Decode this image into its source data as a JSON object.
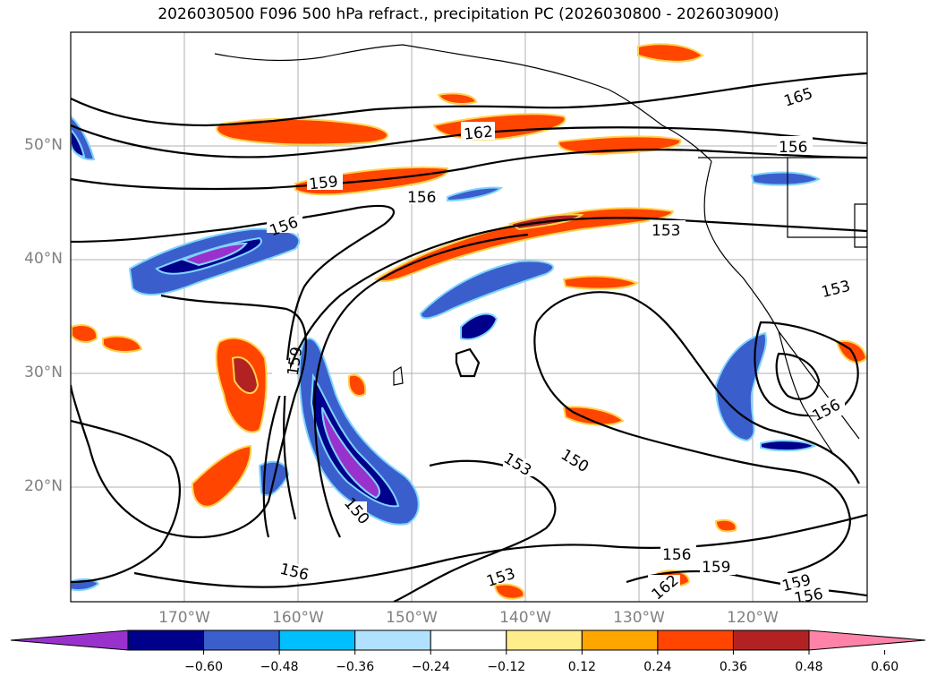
{
  "title": "2026030500 F096 500 hPa refract., precipitation PC (2026030800 - 2026030900)",
  "lat_labels": [
    "50°N",
    "40°N",
    "30°N",
    "20°N"
  ],
  "lon_labels": [
    "170°W",
    "160°W",
    "150°W",
    "140°W",
    "130°W",
    "120°W"
  ],
  "contour_labels": {
    "c165": "165",
    "c162": "162",
    "c159": "159",
    "c156": "156",
    "c153": "153",
    "c150": "150"
  },
  "colorbar": {
    "colors": [
      "#9932cc",
      "#00008b",
      "#3a5fcd",
      "#00bfff",
      "#b0e2ff",
      "#ffffff",
      "#ffec8b",
      "#ffa500",
      "#ff4500",
      "#b22222",
      "#ff83a8"
    ],
    "ticks": [
      "−0.60",
      "−0.48",
      "−0.36",
      "−0.24",
      "−0.12",
      "0.12",
      "0.24",
      "0.36",
      "0.48",
      "0.60"
    ]
  }
}
